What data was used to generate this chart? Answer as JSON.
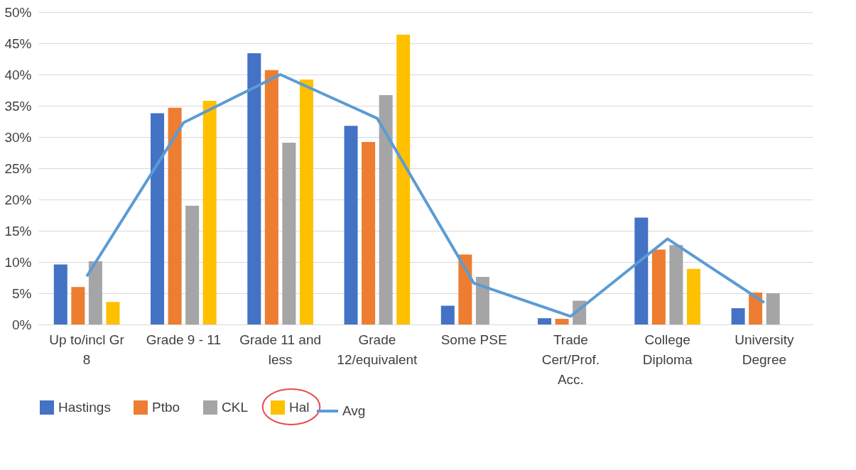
{
  "chart_data": {
    "type": "bar",
    "categories": [
      "Up to/incl Gr 8",
      "Grade 9 - 11",
      "Grade 11 and less",
      "Grade 12/equivalent",
      "Some PSE",
      "Trade Cert/Prof. Acc.",
      "College Diploma",
      "University Degree"
    ],
    "series": [
      {
        "name": "Hastings",
        "color": "#4472c4",
        "values": [
          9.6,
          33.8,
          43.4,
          31.8,
          3.0,
          1.0,
          17.1,
          2.6
        ]
      },
      {
        "name": "Ptbo",
        "color": "#ed7d31",
        "values": [
          6.0,
          34.7,
          40.7,
          29.2,
          11.2,
          0.9,
          12.0,
          5.1
        ]
      },
      {
        "name": "CKL",
        "color": "#a5a5a5",
        "values": [
          10.1,
          19.0,
          29.1,
          36.7,
          7.6,
          3.8,
          12.7,
          5.0
        ]
      },
      {
        "name": "Hal",
        "color": "#ffc000",
        "values": [
          3.6,
          35.8,
          39.2,
          46.4,
          null,
          null,
          8.9,
          null
        ]
      },
      {
        "name": "Avg",
        "color": "#5b9bd5",
        "type": "line",
        "values": [
          7.7,
          32.3,
          40.0,
          33.0,
          6.6,
          1.3,
          13.7,
          3.5
        ]
      }
    ],
    "ylim": [
      0,
      50
    ],
    "yticks": [
      {
        "value": 0,
        "label": "0%"
      },
      {
        "value": 5,
        "label": "5%"
      },
      {
        "value": 10,
        "label": "10%"
      },
      {
        "value": 15,
        "label": "15%"
      },
      {
        "value": 20,
        "label": "20%"
      },
      {
        "value": 25,
        "label": "25%"
      },
      {
        "value": 30,
        "label": "30%"
      },
      {
        "value": 35,
        "label": "35%"
      },
      {
        "value": 40,
        "label": "40%"
      },
      {
        "value": 45,
        "label": "45%"
      },
      {
        "value": 50,
        "label": "50%"
      }
    ],
    "grid": "y",
    "legend": "bottom",
    "marker": "none"
  }
}
